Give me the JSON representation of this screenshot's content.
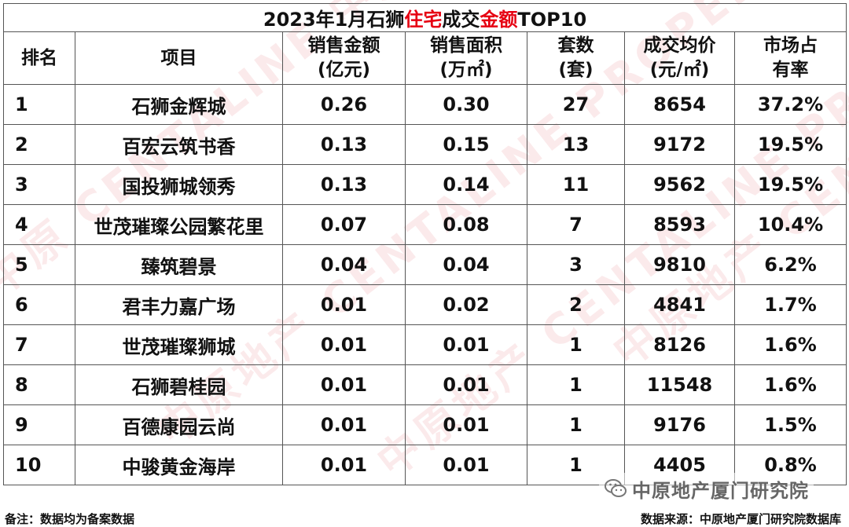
{
  "title": {
    "part1": "2023年1月石狮",
    "part2": "住宅",
    "part3": "成交",
    "part4": "金额",
    "part5": "TOP10"
  },
  "headers": [
    {
      "line1": "排名",
      "line2": ""
    },
    {
      "line1": "项目",
      "line2": ""
    },
    {
      "line1": "销售金额",
      "line2": "(亿元)"
    },
    {
      "line1": "销售面积",
      "line2": "(万㎡)"
    },
    {
      "line1": "套数",
      "line2": "(套)"
    },
    {
      "line1": "成交均价",
      "line2": "(元/㎡)"
    },
    {
      "line1": "市场占",
      "line2": "有率"
    }
  ],
  "rows": [
    {
      "rank": "1",
      "project": "石狮金辉城",
      "amount": "0.26",
      "area": "0.30",
      "units": "27",
      "price": "8654",
      "share": "37.2%"
    },
    {
      "rank": "2",
      "project": "百宏云筑书香",
      "amount": "0.13",
      "area": "0.15",
      "units": "13",
      "price": "9172",
      "share": "19.5%"
    },
    {
      "rank": "3",
      "project": "国投狮城领秀",
      "amount": "0.13",
      "area": "0.14",
      "units": "11",
      "price": "9562",
      "share": "19.5%"
    },
    {
      "rank": "4",
      "project": "世茂璀璨公园繁花里",
      "amount": "0.07",
      "area": "0.08",
      "units": "7",
      "price": "8593",
      "share": "10.4%"
    },
    {
      "rank": "5",
      "project": "臻筑碧景",
      "amount": "0.04",
      "area": "0.04",
      "units": "3",
      "price": "9810",
      "share": "6.2%"
    },
    {
      "rank": "6",
      "project": "君丰力嘉广场",
      "amount": "0.01",
      "area": "0.02",
      "units": "2",
      "price": "4841",
      "share": "1.7%"
    },
    {
      "rank": "7",
      "project": "世茂璀璨狮城",
      "amount": "0.01",
      "area": "0.01",
      "units": "1",
      "price": "8126",
      "share": "1.6%"
    },
    {
      "rank": "8",
      "project": "石狮碧桂园",
      "amount": "0.01",
      "area": "0.01",
      "units": "1",
      "price": "11548",
      "share": "1.6%"
    },
    {
      "rank": "9",
      "project": "百德康园云尚",
      "amount": "0.01",
      "area": "0.01",
      "units": "1",
      "price": "9176",
      "share": "1.5%"
    },
    {
      "rank": "10",
      "project": "中骏黄金海岸",
      "amount": "0.01",
      "area": "0.01",
      "units": "1",
      "price": "4405",
      "share": "0.8%"
    }
  ],
  "footer": {
    "note": "备注：数据均为备案数据",
    "source": "数据来源：中原地产厦门研究院数据库"
  },
  "logo": {
    "text": "中原地产厦门研究院",
    "icon": "wechat-icon"
  },
  "colors": {
    "title_accent": "#e60012",
    "watermark": "#d6323c"
  }
}
